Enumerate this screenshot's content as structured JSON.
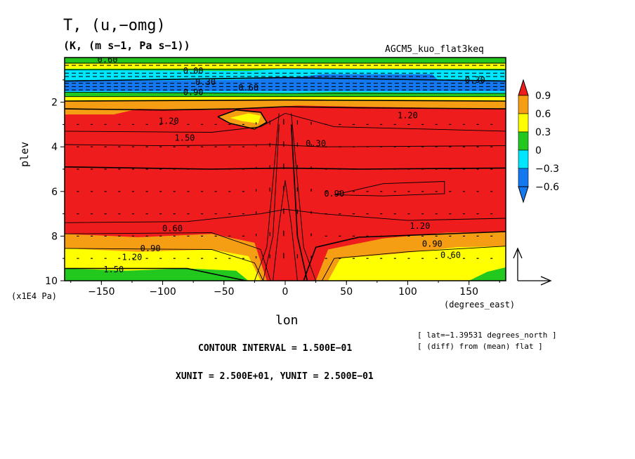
{
  "header": {
    "title": "T, (u,−omg)",
    "units": "(K, (m s−1, Pa s−1))",
    "run_name": "AGCM5_kuo_flat3keq"
  },
  "footer": {
    "lat_info": "[ lat=−1.39531 degrees_north ]",
    "diff_info": "[ (diff) from (mean) flat ]",
    "contour_interval": "CONTOUR INTERVAL = 1.500E−01",
    "vector_scale": "XUNIT = 2.500E+01, YUNIT = 2.500E−01"
  },
  "colors": {
    "red": "#ee1c1c",
    "orange": "#f59e14",
    "yellow": "#ffff00",
    "green": "#22c81e",
    "cyan": "#00e6ff",
    "blue": "#1479f0"
  },
  "chart_data": {
    "type": "heatmap",
    "title": "T, (u,−omg)",
    "subtitle": "(K, (m s−1, Pa s−1))",
    "xlabel": "lon",
    "x_unit_label": "(degrees_east)",
    "ylabel": "plev",
    "y_unit_label": "(x1E4 Pa)",
    "xlim": [
      -180,
      180
    ],
    "ylim": [
      10,
      0
    ],
    "x_ticks": [
      -150,
      -100,
      -50,
      0,
      50,
      100,
      150
    ],
    "y_ticks": [
      2,
      4,
      6,
      8,
      10
    ],
    "colorbar": {
      "levels": [
        "0.9",
        "0.6",
        "0.3",
        "0",
        "−0.3",
        "−0.6"
      ],
      "colors": [
        "#ee1c1c",
        "#f59e14",
        "#ffff00",
        "#22c81e",
        "#00e6ff",
        "#1479f0"
      ]
    },
    "contour_labels": [
      "0.60",
      "0.00",
      "0.30",
      "0.90",
      "1.20",
      "1.50",
      "0.30",
      "0.60",
      "0.90",
      "1.20",
      "1.50",
      "1.20",
      "0.90",
      "0.60",
      "0.30",
      "1.20",
      "0.90",
      "0.60"
    ],
    "contour_interval": 0.15,
    "vector_units": {
      "x": 25,
      "y": 0.25
    }
  }
}
